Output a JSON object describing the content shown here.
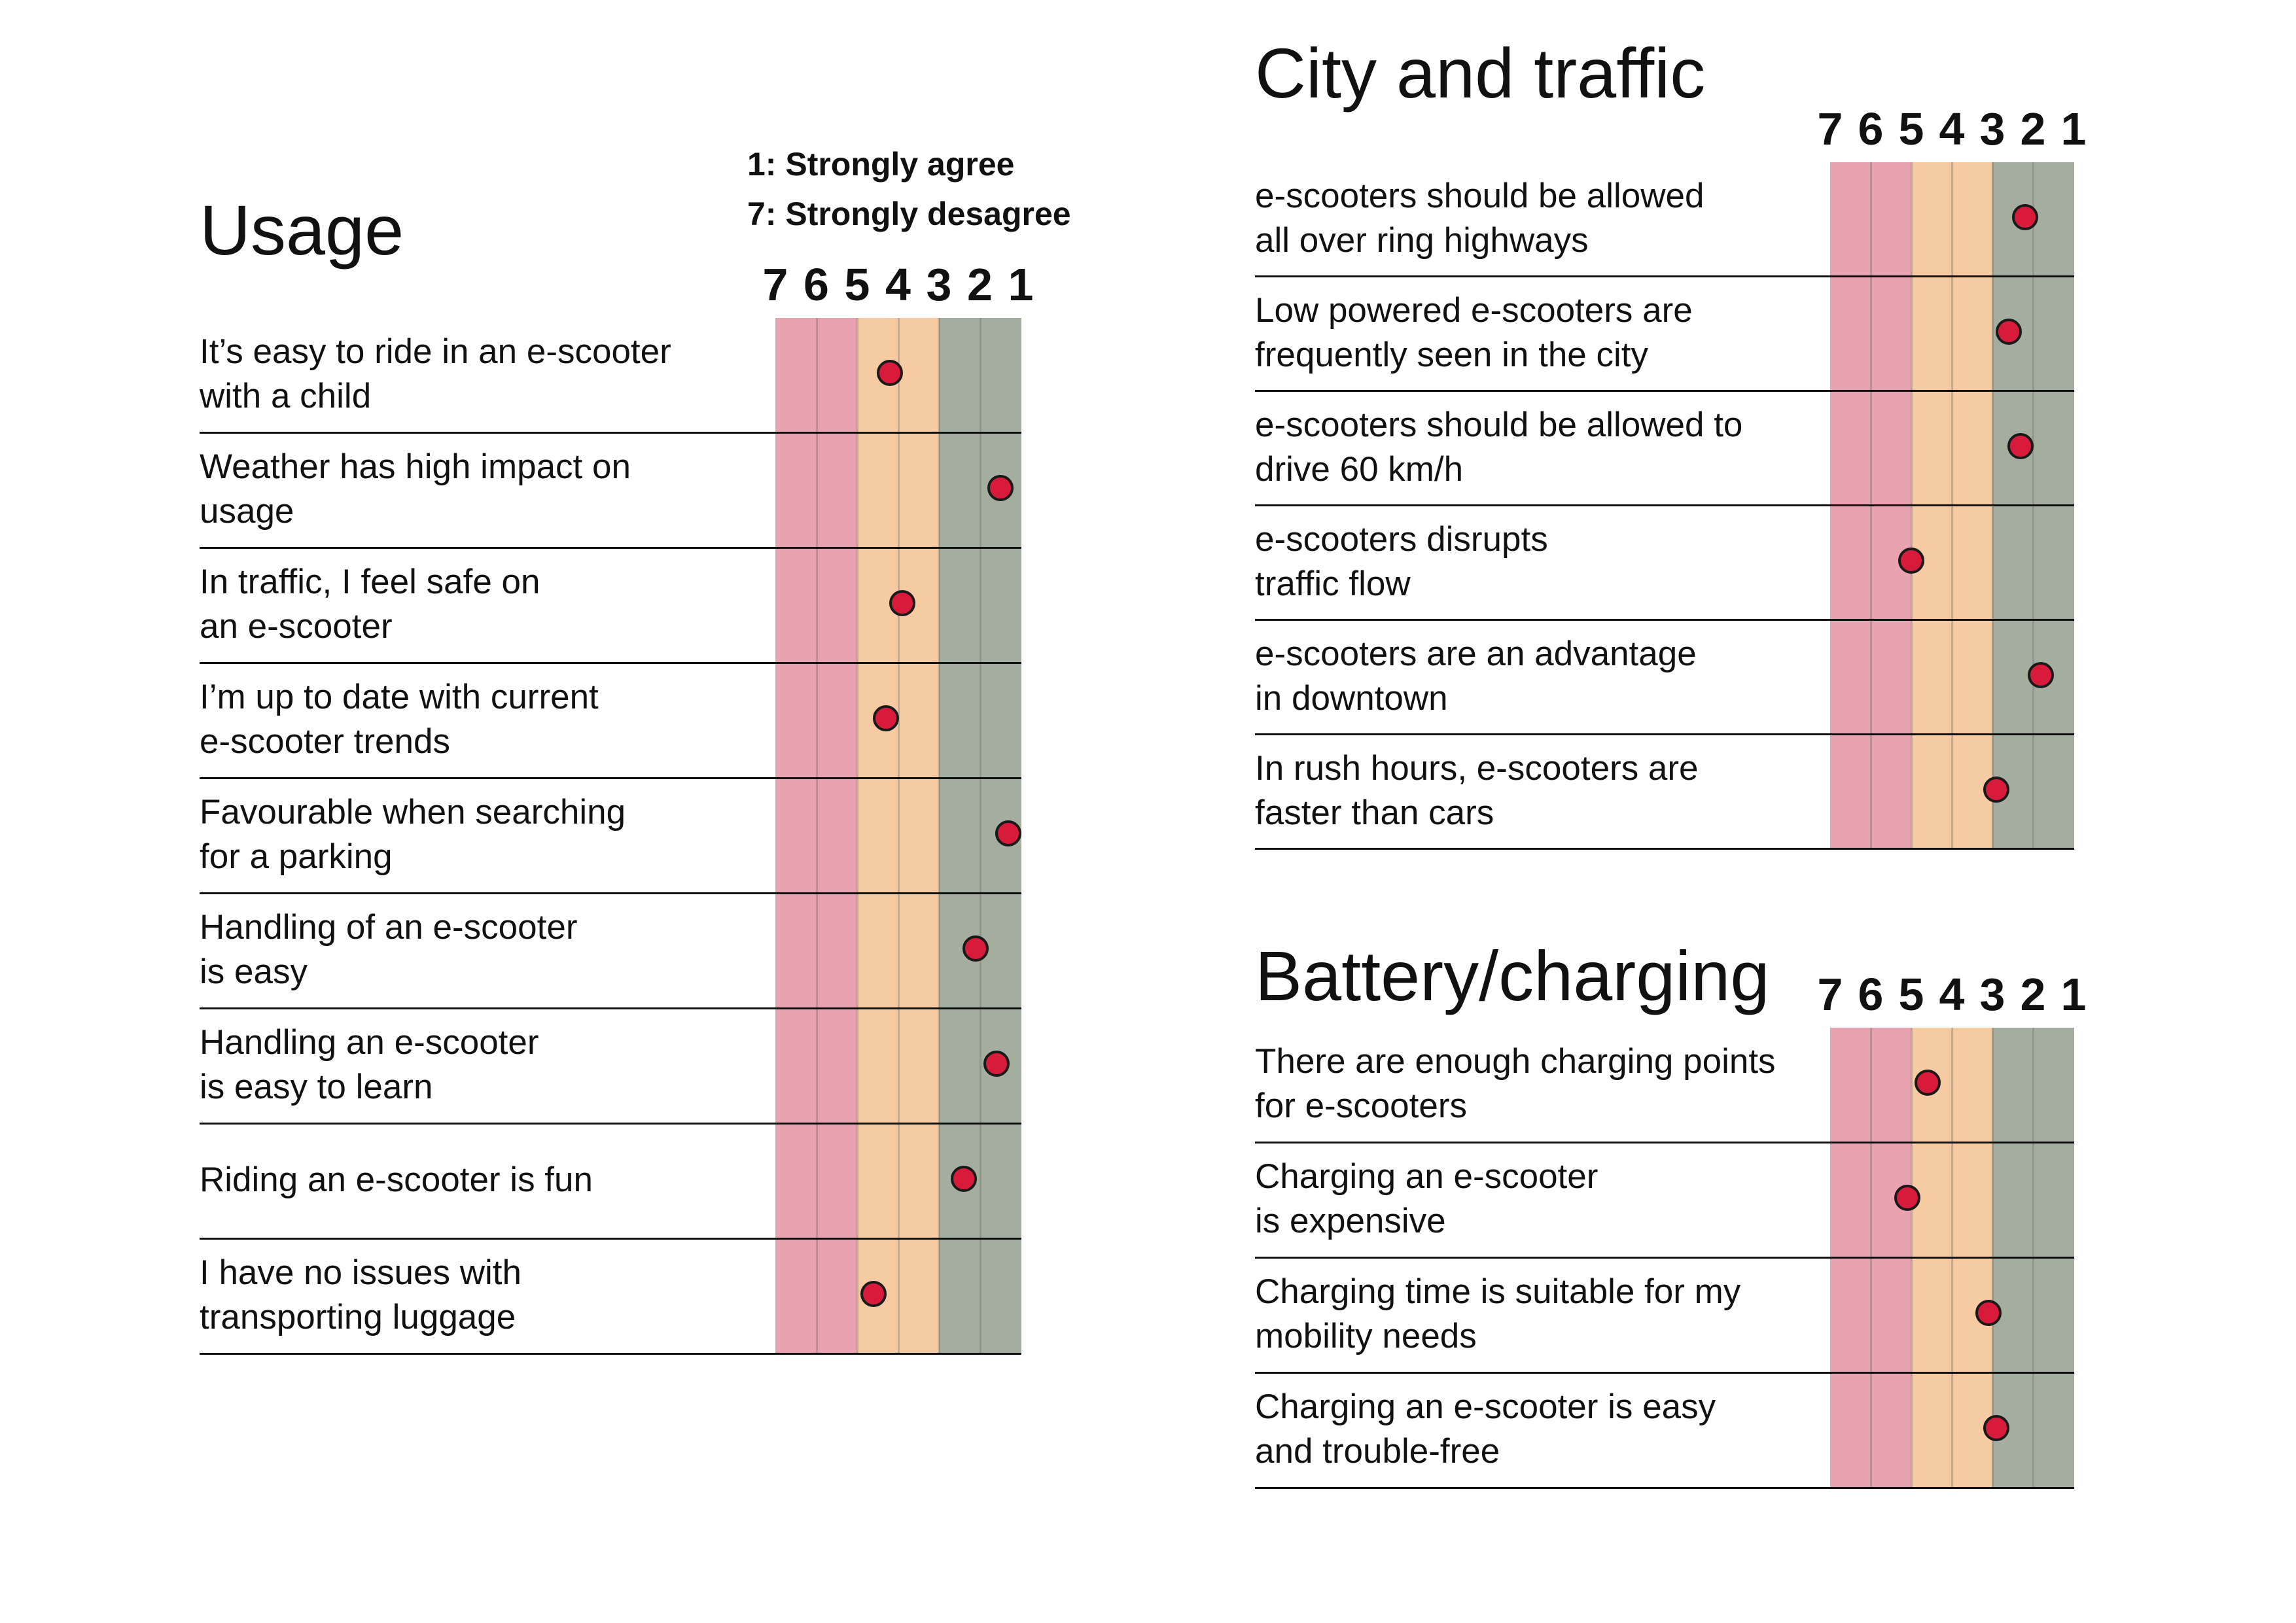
{
  "chart_data": {
    "type": "scatter",
    "scale": {
      "ticks": [
        "7",
        "6",
        "5",
        "4",
        "3",
        "2",
        "1"
      ],
      "legend": [
        "1: Strongly agree",
        "7: Strongly desagree"
      ]
    },
    "colors": {
      "disagree": "#e8a2b0",
      "neutral": "#f6cba2",
      "agree": "#a3ae9f",
      "dot": "#d81b3a",
      "dot_outline": "#1a1a1a"
    },
    "panels": [
      {
        "title": "Usage",
        "items": [
          {
            "label": [
              "It’s easy to ride in an e-scooter",
              "with a child"
            ],
            "value": 4.2
          },
          {
            "label": [
              "Weather has high impact on",
              "usage"
            ],
            "value": 1.5
          },
          {
            "label": [
              "In traffic, I feel safe on",
              "an e-scooter"
            ],
            "value": 3.9
          },
          {
            "label": [
              "I’m up to date with current",
              "e-scooter trends"
            ],
            "value": 4.3
          },
          {
            "label": [
              "Favourable when searching",
              "for a parking"
            ],
            "value": 1.3
          },
          {
            "label": [
              "Handling of an e-scooter",
              "is easy"
            ],
            "value": 2.1
          },
          {
            "label": [
              "Handling an e-scooter",
              "is easy to learn"
            ],
            "value": 1.6
          },
          {
            "label": [
              "Riding an e-scooter is fun"
            ],
            "value": 2.4
          },
          {
            "label": [
              "I have no issues with",
              "transporting luggage"
            ],
            "value": 4.6
          }
        ]
      },
      {
        "title": "City and traffic",
        "items": [
          {
            "label": [
              "e-scooters should be allowed",
              "all over ring highways"
            ],
            "value": 2.2
          },
          {
            "label": [
              "Low powered e-scooters are",
              "frequently seen in the city"
            ],
            "value": 2.6
          },
          {
            "label": [
              "e-scooters should be allowed to",
              "drive 60 km/h"
            ],
            "value": 2.3
          },
          {
            "label": [
              "e-scooters disrupts",
              "traffic flow"
            ],
            "value": 5.0
          },
          {
            "label": [
              "e-scooters are an advantage",
              "in downtown"
            ],
            "value": 1.8
          },
          {
            "label": [
              "In rush hours, e-scooters are",
              "faster than cars"
            ],
            "value": 2.9
          }
        ]
      },
      {
        "title": "Battery/charging",
        "items": [
          {
            "label": [
              "There are enough charging points",
              "for e-scooters"
            ],
            "value": 4.6
          },
          {
            "label": [
              "Charging an e-scooter",
              "is expensive"
            ],
            "value": 5.1
          },
          {
            "label": [
              "Charging time is suitable for my",
              "mobility needs"
            ],
            "value": 3.1
          },
          {
            "label": [
              "Charging an e-scooter is easy",
              "and  trouble-free"
            ],
            "value": 2.9
          }
        ]
      }
    ]
  }
}
